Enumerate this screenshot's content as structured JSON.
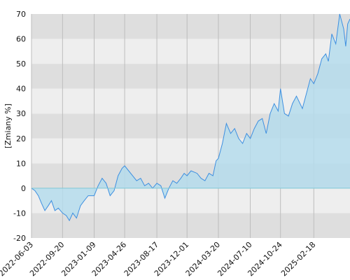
{
  "chart_data": {
    "type": "area",
    "ylabel": "[Zmiany %]",
    "ylim": [
      -20,
      70
    ],
    "xlim": [
      "2022-06-03",
      "2025-06-25"
    ],
    "yticks": [
      -20,
      -10,
      0,
      10,
      20,
      30,
      40,
      50,
      60,
      70
    ],
    "xticks": [
      "2022-06-03",
      "2022-09-20",
      "2023-01-09",
      "2023-04-26",
      "2023-08-17",
      "2023-12-01",
      "2024-03-20",
      "2024-07-10",
      "2024-10-24",
      "2025-02-18"
    ],
    "grid": true,
    "colors": {
      "line": "#3d8fe0",
      "fill": "#b5dcec",
      "band_light": "#eeeeee",
      "band_dark": "#dedede",
      "zero_line": "#7ec8d6"
    },
    "series": [
      {
        "x": [
          "2022-06-03",
          "2022-06-15",
          "2022-06-27",
          "2022-07-08",
          "2022-07-20",
          "2022-08-01",
          "2022-08-12",
          "2022-08-24",
          "2022-09-05",
          "2022-09-20",
          "2022-10-03",
          "2022-10-14",
          "2022-10-26",
          "2022-11-08",
          "2022-11-22",
          "2022-12-05",
          "2022-12-19",
          "2023-01-09",
          "2023-01-23",
          "2023-02-06",
          "2023-02-20",
          "2023-03-06",
          "2023-03-20",
          "2023-04-03",
          "2023-04-17",
          "2023-04-26",
          "2023-05-10",
          "2023-05-24",
          "2023-06-07",
          "2023-06-21",
          "2023-07-05",
          "2023-07-19",
          "2023-08-02",
          "2023-08-17",
          "2023-08-31",
          "2023-09-14",
          "2023-09-28",
          "2023-10-12",
          "2023-10-26",
          "2023-11-09",
          "2023-11-21",
          "2023-12-01",
          "2023-12-15",
          "2024-01-05",
          "2024-01-19",
          "2024-02-02",
          "2024-02-16",
          "2024-03-01",
          "2024-03-12",
          "2024-03-20",
          "2024-04-03",
          "2024-04-17",
          "2024-05-02",
          "2024-05-16",
          "2024-05-30",
          "2024-06-13",
          "2024-06-27",
          "2024-07-10",
          "2024-07-24",
          "2024-08-07",
          "2024-08-21",
          "2024-09-04",
          "2024-09-18",
          "2024-10-02",
          "2024-10-16",
          "2024-10-24",
          "2024-11-07",
          "2024-11-21",
          "2024-12-05",
          "2024-12-19",
          "2025-01-09",
          "2025-01-23",
          "2025-02-06",
          "2025-02-18",
          "2025-03-04",
          "2025-03-18",
          "2025-04-01",
          "2025-04-10",
          "2025-04-22",
          "2025-05-06",
          "2025-05-20",
          "2025-06-03",
          "2025-06-10",
          "2025-06-17",
          "2025-06-25"
        ],
        "y": [
          0,
          -1,
          -3,
          -6,
          -9,
          -7,
          -5,
          -9,
          -8,
          -10,
          -11,
          -13,
          -10,
          -12,
          -7,
          -5,
          -3,
          -3,
          1,
          4,
          2,
          -3,
          -1,
          5,
          8,
          9,
          7,
          5,
          3,
          4,
          1,
          2,
          0,
          2,
          1,
          -4,
          0,
          3,
          2,
          4,
          6,
          5,
          7,
          6,
          4,
          3,
          6,
          5,
          11,
          12,
          18,
          26,
          22,
          24,
          20,
          18,
          22,
          20,
          24,
          27,
          28,
          22,
          30,
          34,
          31,
          40,
          30,
          29,
          34,
          37,
          32,
          38,
          44,
          42,
          46,
          52,
          54,
          51,
          62,
          58,
          70,
          64,
          57,
          66,
          68
        ]
      }
    ]
  }
}
